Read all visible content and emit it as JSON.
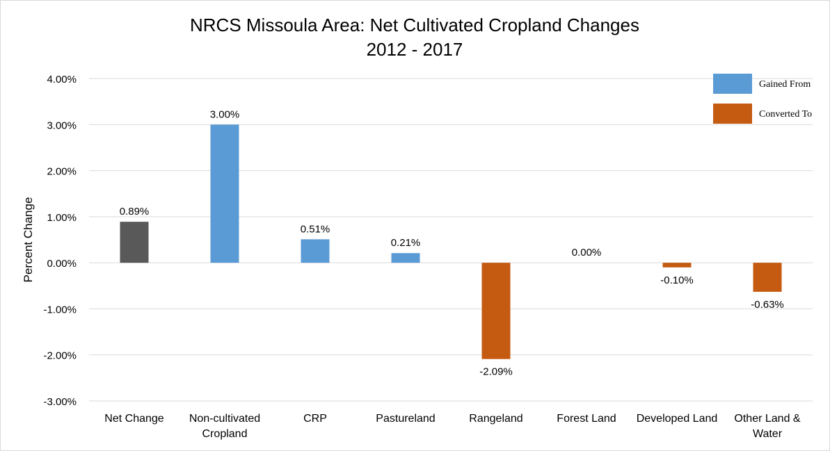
{
  "chart_data": {
    "type": "bar",
    "title": "NRCS Missoula Area: Net Cultivated Cropland Changes",
    "subtitle": "2012 - 2017",
    "ylabel": "Percent Change",
    "xlabel": "",
    "ylim": [
      -3.0,
      4.0
    ],
    "y_ticks": [
      "4.00%",
      "3.00%",
      "2.00%",
      "1.00%",
      "0.00%",
      "-1.00%",
      "-2.00%",
      "-3.00%"
    ],
    "grid": true,
    "legend_position": "top-right",
    "legend": [
      {
        "label": "Gained From",
        "color": "#5b9bd5"
      },
      {
        "label": "Converted To",
        "color": "#c55a11"
      }
    ],
    "categories": [
      [
        "Net Change"
      ],
      [
        "Non-cultivated",
        "Cropland"
      ],
      [
        "CRP"
      ],
      [
        "Pastureland"
      ],
      [
        "Rangeland"
      ],
      [
        "Forest Land"
      ],
      [
        "Developed Land"
      ],
      [
        "Other Land &",
        "Water"
      ]
    ],
    "values": [
      0.89,
      3.0,
      0.51,
      0.21,
      -2.09,
      0.0,
      -0.1,
      -0.63
    ],
    "value_labels": [
      "0.89%",
      "3.00%",
      "0.51%",
      "0.21%",
      "-2.09%",
      "0.00%",
      "-0.10%",
      "-0.63%"
    ],
    "bar_colors": [
      "#595959",
      "#5b9bd5",
      "#5b9bd5",
      "#5b9bd5",
      "#c55a11",
      "#5b9bd5",
      "#c55a11",
      "#c55a11"
    ]
  }
}
